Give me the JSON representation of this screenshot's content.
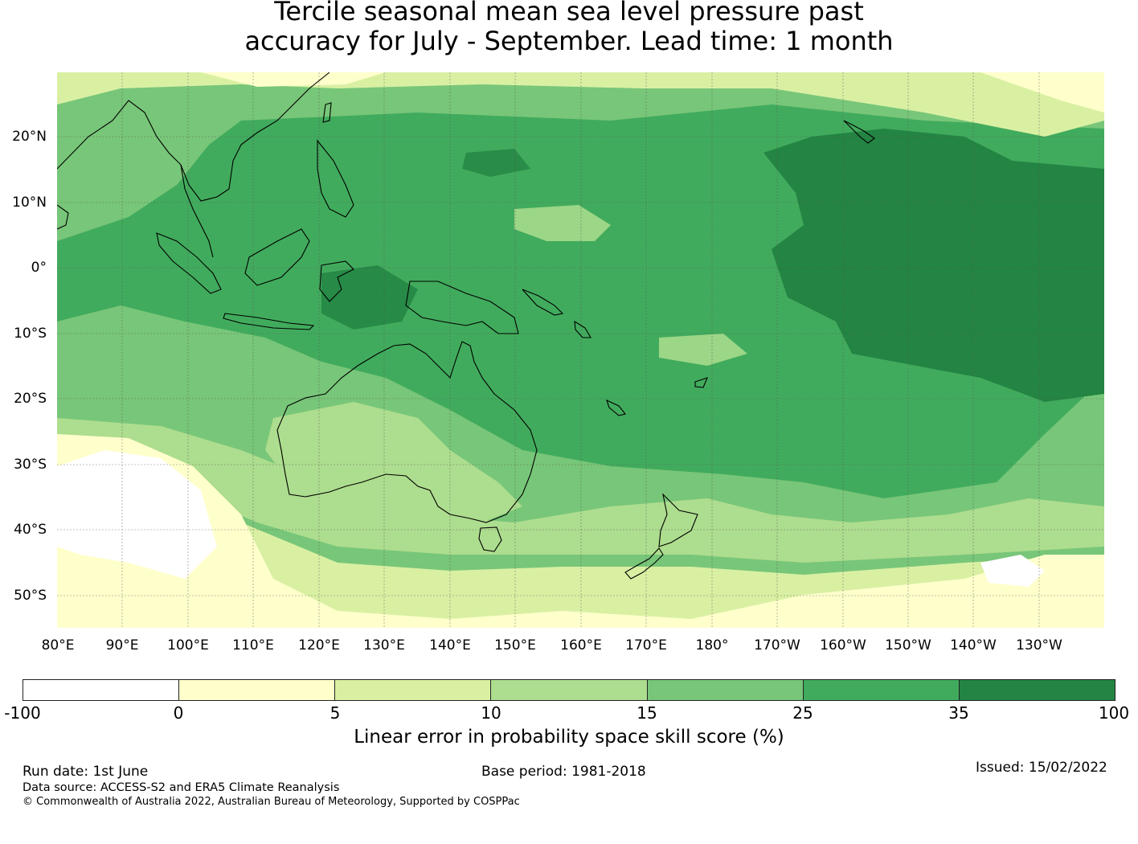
{
  "title": {
    "line1": "Tercile seasonal mean sea level pressure past",
    "line2": "accuracy for July - September. Lead time: 1 month"
  },
  "map": {
    "lat_labels": [
      "20°N",
      "10°N",
      "0°",
      "10°S",
      "20°S",
      "30°S",
      "40°S",
      "50°S"
    ],
    "lon_labels": [
      "80°E",
      "90°E",
      "100°E",
      "110°E",
      "120°E",
      "130°E",
      "140°E",
      "150°E",
      "160°E",
      "170°E",
      "180°",
      "170°W",
      "160°W",
      "150°W",
      "140°W",
      "130°W"
    ],
    "extent": {
      "lon_min": 80,
      "lon_max": 240,
      "lat_min": -55,
      "lat_max": 30
    },
    "gridlines": true
  },
  "colorbar": {
    "ticks": [
      "-100",
      "0",
      "5",
      "10",
      "15",
      "25",
      "35",
      "100"
    ],
    "colors": [
      "#ffffff",
      "#ffffcc",
      "#d9f0a3",
      "#addd8e",
      "#78c679",
      "#41ab5d",
      "#238443"
    ],
    "label": "Linear error in probability space skill score (%)"
  },
  "footer": {
    "run_date": "Run date: 1st June",
    "base_period": "Base period: 1981-2018",
    "issued": "Issued: 15/02/2022",
    "data_source": "Data source: ACCESS-S2 and ERA5 Climate Reanalysis",
    "copyright": "© Commonwealth of Australia 2022, Australian Bureau of Meteorology, Supported by COSPPac"
  }
}
